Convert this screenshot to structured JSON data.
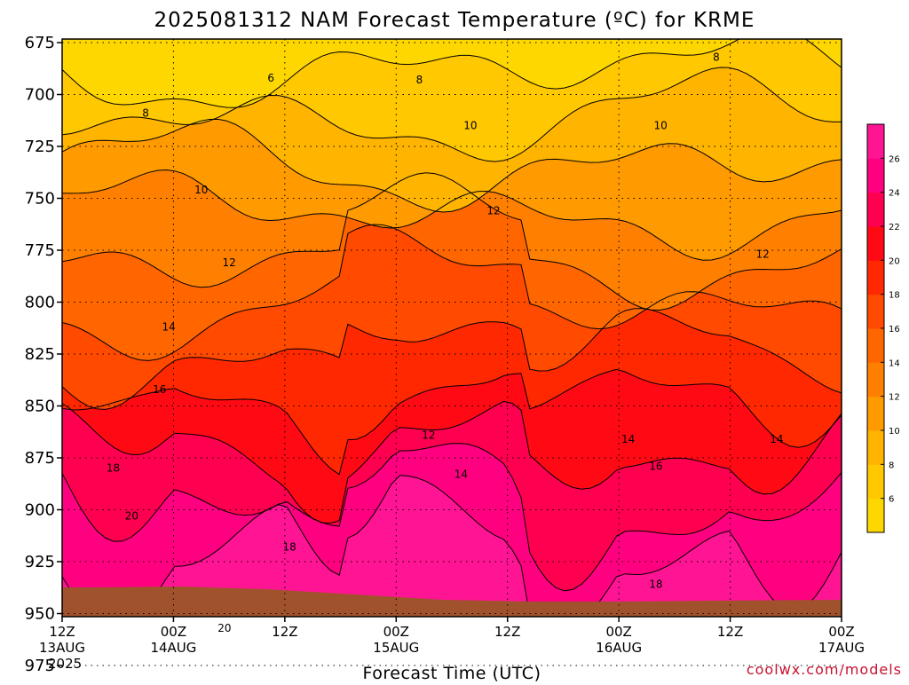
{
  "chart_data": {
    "type": "heatmap",
    "title": "2025081312 NAM Forecast Temperature (ºC) for KRME",
    "xlabel": "Forecast Time (UTC)",
    "ylabel": "",
    "credit": "coolwx.com/models",
    "y_ticks": [
      "675",
      "700",
      "725",
      "750",
      "775",
      "800",
      "825",
      "850",
      "875",
      "900",
      "925",
      "950",
      "975"
    ],
    "ylim": [
      975,
      675
    ],
    "x_ticks": [
      {
        "hour": 0,
        "line1": "12Z",
        "line2": "13AUG",
        "line3": "2025"
      },
      {
        "hour": 12,
        "line1": "00Z",
        "line2": "14AUG",
        "line3": ""
      },
      {
        "hour": 24,
        "line1": "12Z",
        "line2": "",
        "line3": ""
      },
      {
        "hour": 36,
        "line1": "00Z",
        "line2": "15AUG",
        "line3": ""
      },
      {
        "hour": 48,
        "line1": "12Z",
        "line2": "",
        "line3": ""
      },
      {
        "hour": 60,
        "line1": "00Z",
        "line2": "16AUG",
        "line3": ""
      },
      {
        "hour": 72,
        "line1": "12Z",
        "line2": "",
        "line3": ""
      },
      {
        "hour": 84,
        "line1": "00Z",
        "line2": "17AUG",
        "line3": ""
      }
    ],
    "xlim": [
      0,
      84
    ],
    "colorbar": {
      "ticks": [
        "6",
        "8",
        "10",
        "12",
        "14",
        "16",
        "18",
        "20",
        "22",
        "24",
        "26"
      ],
      "colors": [
        "#ffd700",
        "#ffc800",
        "#ffb400",
        "#ff9a00",
        "#ff8000",
        "#ff6600",
        "#ff4a00",
        "#ff2800",
        "#ff0a14",
        "#ff0050",
        "#ff0080",
        "#ff1493"
      ]
    },
    "contour_labels": [
      {
        "text": "6",
        "hour": 22.5,
        "p": 692
      },
      {
        "text": "8",
        "hour": 9,
        "p": 709
      },
      {
        "text": "8",
        "hour": 38.5,
        "p": 693
      },
      {
        "text": "8",
        "hour": 70.5,
        "p": 682
      },
      {
        "text": "10",
        "hour": 15,
        "p": 746
      },
      {
        "text": "10",
        "hour": 44,
        "p": 715
      },
      {
        "text": "10",
        "hour": 64.5,
        "p": 715
      },
      {
        "text": "12",
        "hour": 18,
        "p": 781
      },
      {
        "text": "12",
        "hour": 46.5,
        "p": 756
      },
      {
        "text": "12",
        "hour": 75.5,
        "p": 777
      },
      {
        "text": "12",
        "hour": 39.5,
        "p": 864
      },
      {
        "text": "14",
        "hour": 11.5,
        "p": 812
      },
      {
        "text": "14",
        "hour": 43,
        "p": 883
      },
      {
        "text": "14",
        "hour": 61,
        "p": 866
      },
      {
        "text": "14",
        "hour": 77,
        "p": 866
      },
      {
        "text": "16",
        "hour": 10.5,
        "p": 842
      },
      {
        "text": "16",
        "hour": 64,
        "p": 879
      },
      {
        "text": "18",
        "hour": 5.5,
        "p": 880
      },
      {
        "text": "18",
        "hour": 24.5,
        "p": 918
      },
      {
        "text": "18",
        "hour": 64,
        "p": 936
      },
      {
        "text": "20",
        "hour": 7.5,
        "p": 903
      },
      {
        "text": "20",
        "hour": 17.5,
        "p": 957
      }
    ]
  }
}
